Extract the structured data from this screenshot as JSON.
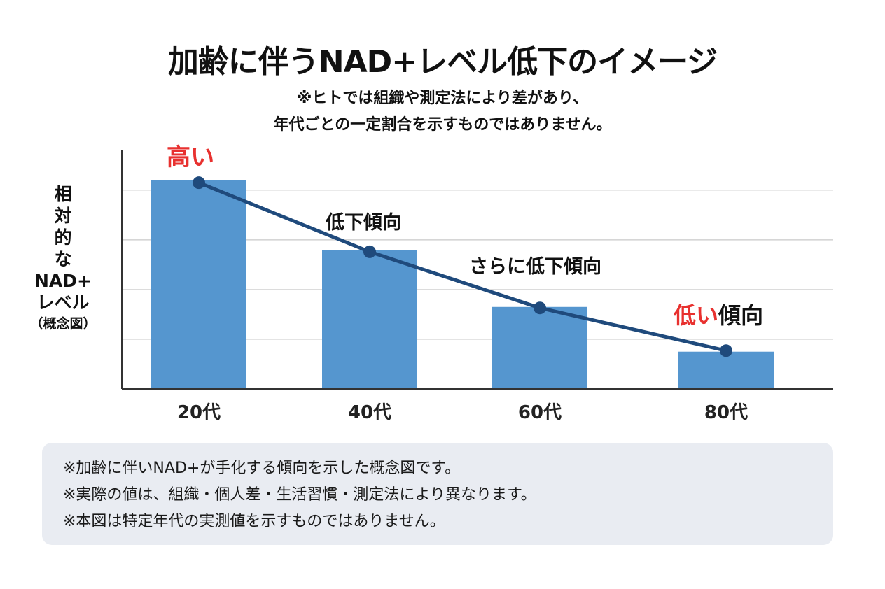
{
  "title": "加齢に伴うNAD+レベル低下のイメージ",
  "subtitle_lines": [
    "※ヒトでは組織や測定法により差があり、",
    "年代ごとの一定割合を示すものではありません。"
  ],
  "chart_data": {
    "type": "bar",
    "title": "加齢に伴うNAD+レベル低下のイメージ",
    "ylabel_lines": [
      "相",
      "対",
      "的",
      "な",
      "NAD+",
      "レベル",
      "（概念図）"
    ],
    "xlabel": "",
    "categories": [
      "20代",
      "40代",
      "60代",
      "80代"
    ],
    "values": [
      4.2,
      2.8,
      1.65,
      0.75
    ],
    "trend_line": [
      4.15,
      2.76,
      1.63,
      0.77
    ],
    "ylim": [
      0,
      4.8
    ],
    "y_ticks_labeled": false,
    "grid": true,
    "gridlines": [
      1,
      2,
      3,
      4
    ],
    "annotations": [
      {
        "category": "20代",
        "text": "高い",
        "color": "#e8312f"
      },
      {
        "category": "40代",
        "text": "低下傾向",
        "color": "#111111"
      },
      {
        "category": "60代",
        "text": "さらに低下傾向",
        "color": "#111111"
      },
      {
        "category": "80代",
        "text_red": "低い",
        "text": "傾向",
        "color": "#e8312f"
      }
    ],
    "colors": {
      "bar": "#5596cf",
      "line": "#1f4a7c",
      "grid": "#c8c8c8",
      "axis": "#333333"
    }
  },
  "notes": [
    "※加齢に伴いNAD+が手化する傾向を示した概念図です。",
    "※実際の値は、組織・個人差・生活習慣・測定法により異なります。",
    "※本図は特定年代の実測値を示すものではありません。"
  ]
}
